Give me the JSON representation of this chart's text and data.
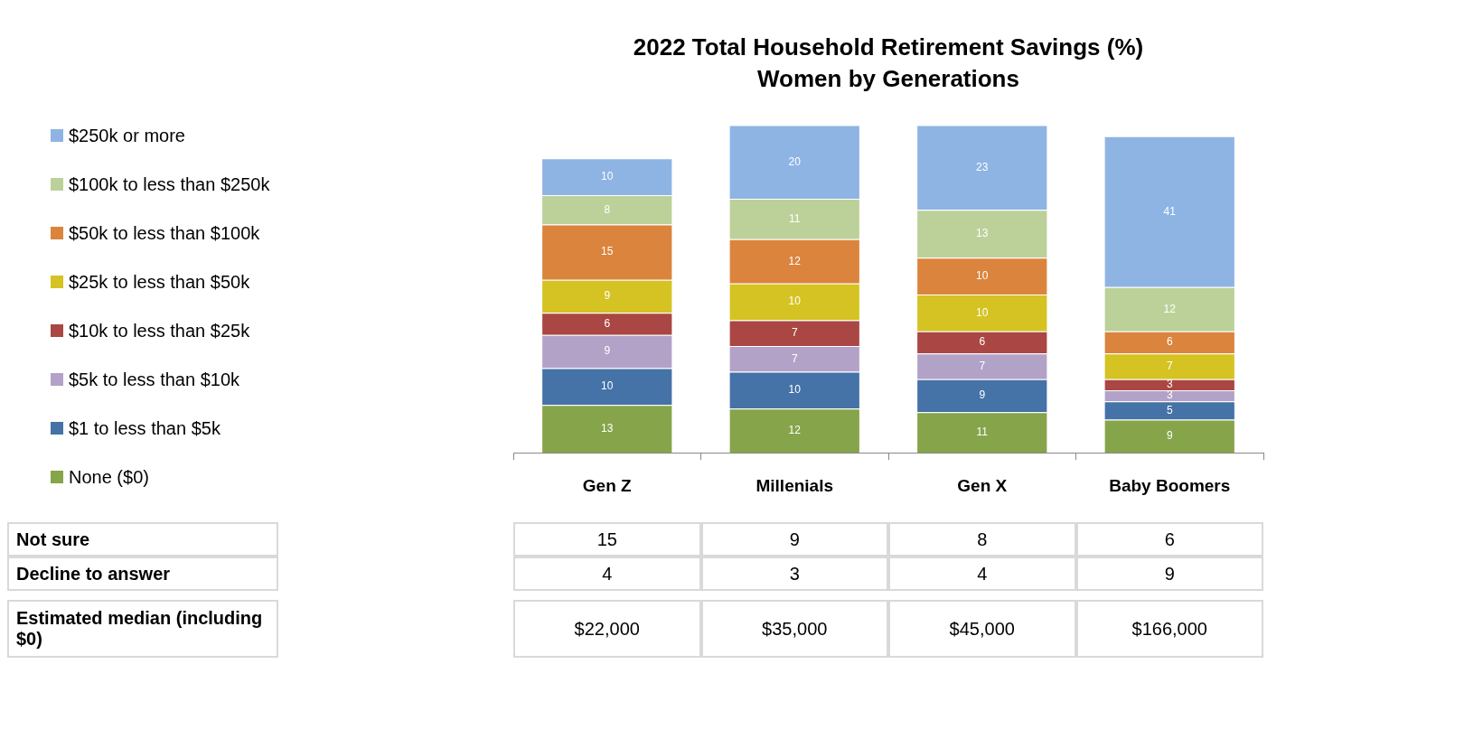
{
  "chart_data": {
    "type": "bar",
    "title": "2022 Total Household Retirement Savings (%)",
    "subtitle": "Women by Generations",
    "categories": [
      "Gen Z",
      "Millenials",
      "Gen X",
      "Baby Boomers"
    ],
    "stacked": true,
    "data_labels": true,
    "grid": false,
    "legend": "left",
    "series": [
      {
        "name": "None ($0)",
        "color": "#86a44a",
        "values": [
          13,
          12,
          11,
          9
        ]
      },
      {
        "name": "$1 to less than $5k",
        "color": "#4572a7",
        "values": [
          10,
          10,
          9,
          5
        ]
      },
      {
        "name": "$5k to less than $10k",
        "color": "#b3a2c7",
        "values": [
          9,
          7,
          7,
          3
        ]
      },
      {
        "name": "$10k to less than $25k",
        "color": "#aa4643",
        "values": [
          6,
          7,
          6,
          3
        ]
      },
      {
        "name": "$25k to less than $50k",
        "color": "#d4c322",
        "values": [
          9,
          10,
          10,
          7
        ]
      },
      {
        "name": "$50k to less than $100k",
        "color": "#db843d",
        "values": [
          15,
          12,
          10,
          6
        ]
      },
      {
        "name": "$100k to less than $250k",
        "color": "#bcd199",
        "values": [
          8,
          11,
          13,
          12
        ]
      },
      {
        "name": "$250k or more",
        "color": "#8eb4e3",
        "values": [
          10,
          20,
          23,
          41
        ]
      }
    ],
    "annotations": [
      "Not sure",
      "15",
      "9",
      "8",
      "6",
      "Decline to answer",
      "4",
      "3",
      "4",
      "9",
      "Estimated median (including $0)",
      "$22,000",
      "$35,000",
      "$45,000",
      "$166,000"
    ]
  }
}
